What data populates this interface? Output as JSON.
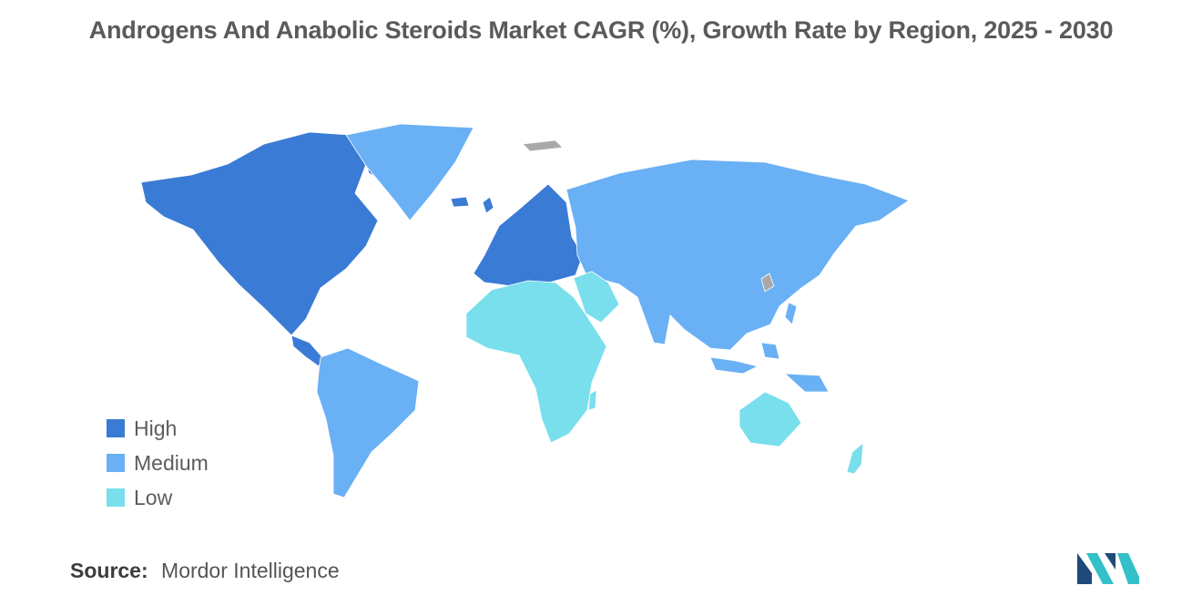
{
  "title": "Androgens And Anabolic Steroids Market CAGR (%), Growth Rate by Region, 2025 - 2030",
  "colors": {
    "high": "#3a7bd5",
    "medium": "#69b0f5",
    "low": "#79dfec",
    "no_data": "#a9a9a9",
    "title": "#5a5a5a",
    "logo_dark": "#1f4a7a",
    "logo_light": "#33c0c8"
  },
  "legend": {
    "items": [
      {
        "label": "High",
        "level": "high"
      },
      {
        "label": "Medium",
        "level": "medium"
      },
      {
        "label": "Low",
        "level": "low"
      }
    ]
  },
  "regions": [
    {
      "name": "North America",
      "level": "high"
    },
    {
      "name": "Europe",
      "level": "high"
    },
    {
      "name": "Asia-Pacific",
      "level": "medium"
    },
    {
      "name": "South America",
      "level": "medium"
    },
    {
      "name": "Middle East and Africa",
      "level": "low"
    }
  ],
  "source": {
    "label": "Source:",
    "value": "Mordor Intelligence"
  },
  "logo_icon": "mordor-intelligence-logo"
}
